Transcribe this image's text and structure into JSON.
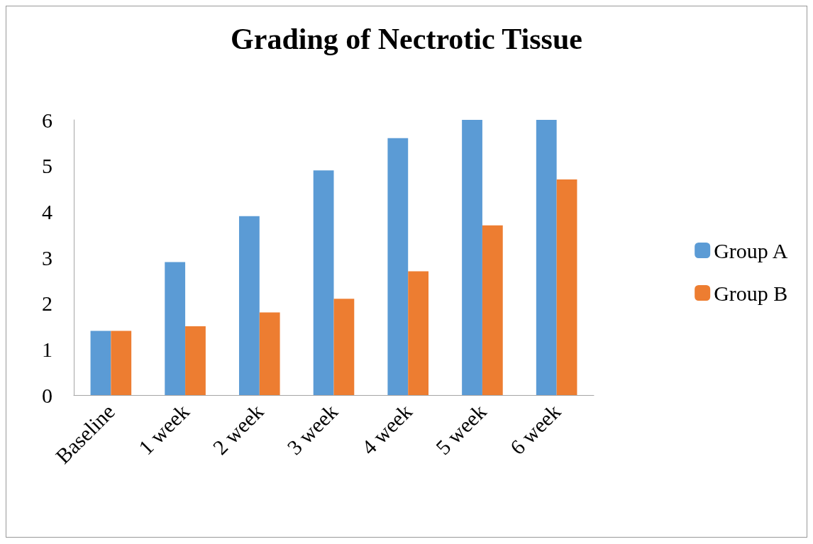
{
  "chart_data": {
    "type": "bar",
    "title": "Grading of Nectrotic Tissue",
    "categories": [
      "Baseline",
      "1 week",
      "2 week",
      "3 week",
      "4 week",
      "5 week",
      "6 week"
    ],
    "series": [
      {
        "name": "Group A",
        "color": "#5b9bd5",
        "values": [
          1.4,
          2.9,
          3.9,
          4.9,
          5.6,
          6,
          6
        ]
      },
      {
        "name": "Group B",
        "color": "#ed7d31",
        "values": [
          1.4,
          1.5,
          1.8,
          2.1,
          2.7,
          3.7,
          4.7
        ]
      }
    ],
    "ylim": [
      0,
      6
    ],
    "yticks": [
      0,
      1,
      2,
      3,
      4,
      5,
      6
    ],
    "grid": false,
    "legend": "right"
  }
}
